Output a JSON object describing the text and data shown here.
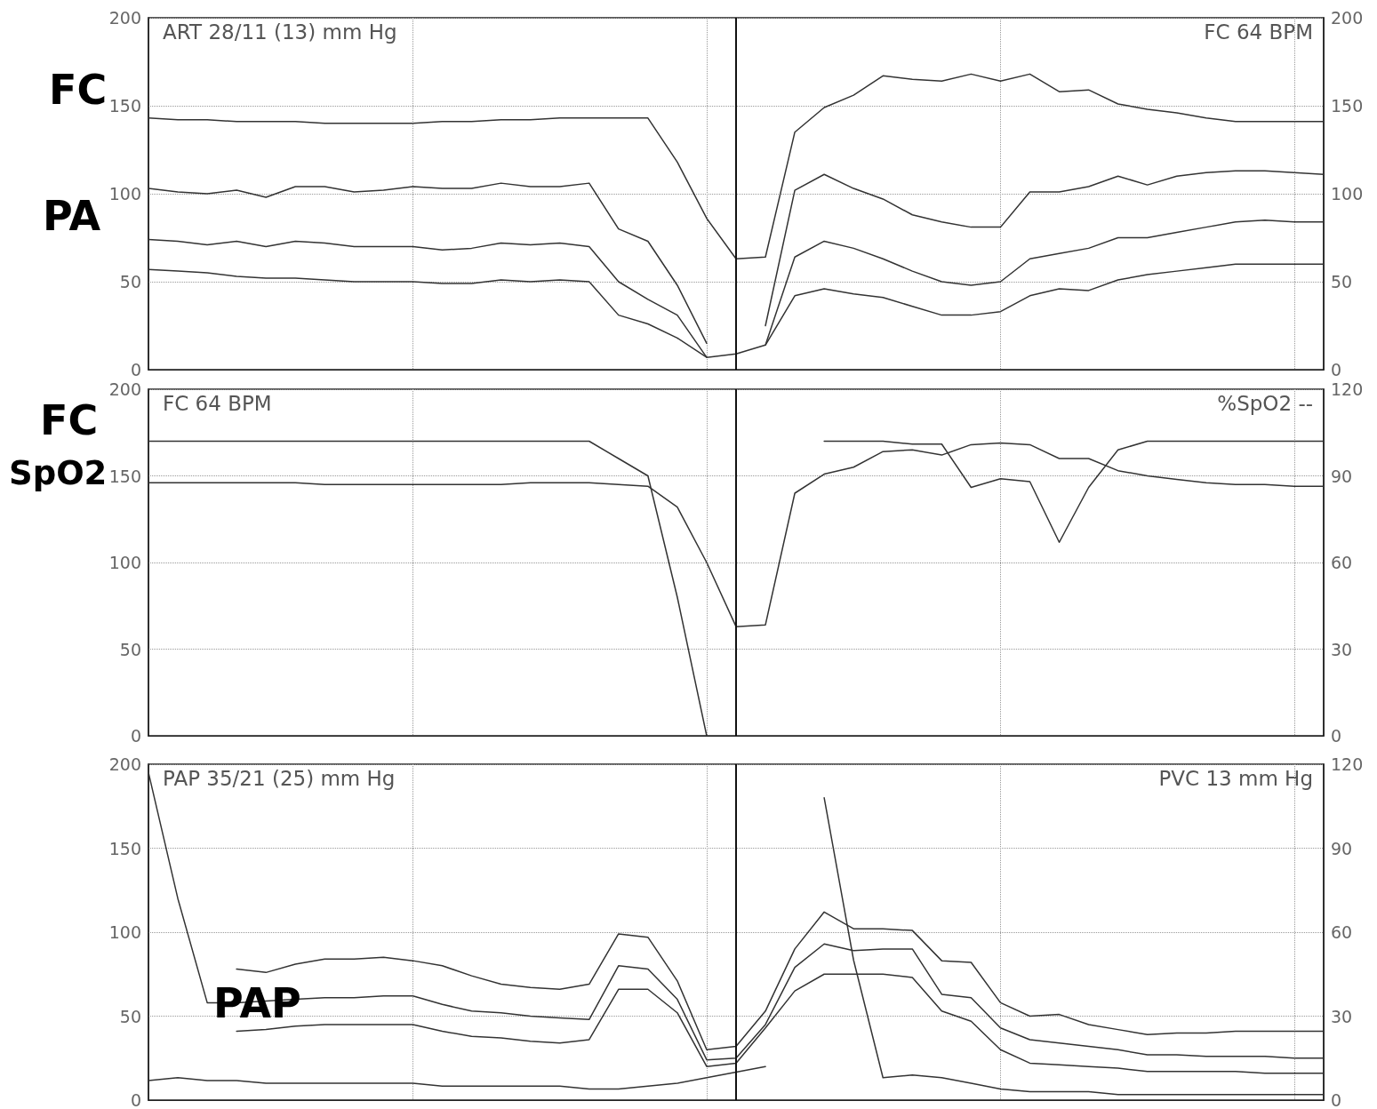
{
  "chart_data": [
    {
      "type": "line",
      "ylabel": "ART 28/11 (13) mm Hg",
      "y2label": "FC 64 BPM",
      "annotations": [
        "FC",
        "PA"
      ],
      "categories": [
        null,
        null,
        null,
        null,
        null,
        null,
        null,
        null,
        null,
        null,
        null,
        null,
        null,
        null,
        null,
        null,
        null,
        null,
        null,
        null,
        null,
        null,
        null,
        null,
        null,
        null,
        null,
        null,
        null,
        null,
        null,
        null,
        null,
        null,
        null,
        null,
        null,
        null,
        null,
        null,
        null
      ],
      "ylim": [
        0,
        200
      ],
      "yticks": [
        0,
        50,
        100,
        150,
        200
      ],
      "y2lim": [
        0,
        200
      ],
      "y2ticks": [
        0,
        50,
        100,
        150,
        200
      ],
      "tick_labels": "y",
      "grid": true,
      "line_style": "solid",
      "series": [
        {
          "color": "#333333",
          "axis": "y2",
          "values": [
            143,
            142,
            142,
            141,
            141,
            141,
            140,
            140,
            140,
            140,
            141,
            141,
            142,
            142,
            143,
            143,
            143,
            143,
            118,
            86,
            63,
            64,
            135,
            149,
            156,
            167,
            165,
            164,
            168,
            164,
            168,
            158,
            159,
            151,
            148,
            146,
            143,
            141,
            141,
            141,
            141
          ]
        },
        {
          "color": "#333333",
          "values": [
            103,
            101,
            100,
            102,
            98,
            104,
            104,
            101,
            102,
            104,
            103,
            103,
            106,
            104,
            104,
            106,
            80,
            73,
            48,
            15,
            null,
            25,
            102,
            111,
            103,
            97,
            88,
            84,
            81,
            81,
            101,
            101,
            104,
            110,
            105,
            110,
            112,
            113,
            113,
            112,
            111
          ]
        },
        {
          "color": "#333333",
          "values": [
            74,
            73,
            71,
            73,
            70,
            73,
            72,
            70,
            70,
            70,
            68,
            69,
            72,
            71,
            72,
            70,
            50,
            40,
            31,
            7,
            null,
            14,
            64,
            73,
            69,
            63,
            56,
            50,
            48,
            50,
            63,
            66,
            69,
            75,
            75,
            78,
            81,
            84,
            85,
            84,
            84
          ]
        },
        {
          "color": "#333333",
          "values": [
            57,
            56,
            55,
            53,
            52,
            52,
            51,
            50,
            50,
            50,
            49,
            49,
            51,
            50,
            51,
            50,
            31,
            26,
            18,
            7,
            9,
            14,
            42,
            46,
            43,
            41,
            36,
            31,
            31,
            33,
            42,
            46,
            45,
            51,
            54,
            56,
            58,
            60,
            60,
            60,
            60
          ]
        }
      ]
    },
    {
      "type": "line",
      "ylabel": "FC 64 BPM",
      "y2label": "%SpO2 --",
      "annotations": [
        "FC",
        "SpO2"
      ],
      "categories": [
        null,
        null,
        null,
        null,
        null,
        null,
        null,
        null,
        null,
        null,
        null,
        null,
        null,
        null,
        null,
        null,
        null,
        null,
        null,
        null,
        null,
        null,
        null,
        null,
        null,
        null,
        null,
        null,
        null,
        null,
        null,
        null,
        null,
        null,
        null,
        null,
        null,
        null,
        null,
        null,
        null
      ],
      "ylim": [
        0,
        200
      ],
      "yticks": [
        0,
        50,
        100,
        150,
        200
      ],
      "y2lim": [
        0,
        120
      ],
      "y2ticks": [
        0,
        30,
        60,
        90,
        120
      ],
      "tick_labels": "y",
      "grid": true,
      "line_style": "solid",
      "series": [
        {
          "color": "#333333",
          "values": [
            146,
            146,
            146,
            146,
            146,
            146,
            145,
            145,
            145,
            145,
            145,
            145,
            145,
            146,
            146,
            146,
            145,
            144,
            132,
            100,
            63,
            64,
            140,
            151,
            155,
            164,
            165,
            162,
            168,
            169,
            168,
            160,
            160,
            153,
            150,
            148,
            146,
            145,
            145,
            144,
            144
          ]
        },
        {
          "color": "#333333",
          "axis": "y2",
          "values": [
            102,
            102,
            102,
            102,
            102,
            102,
            102,
            102,
            102,
            102,
            102,
            102,
            102,
            102,
            102,
            102,
            96,
            90,
            48,
            0,
            null,
            null,
            null,
            102,
            102,
            102,
            101,
            101,
            86,
            89,
            88,
            67,
            86,
            99,
            102,
            102,
            102,
            102,
            102,
            102,
            102
          ]
        }
      ]
    },
    {
      "type": "line",
      "ylabel": "PAP 35/21 (25) mm Hg",
      "y2label": "PVC 13 mm Hg",
      "annotations": [
        "PAP"
      ],
      "categories": [
        null,
        null,
        null,
        null,
        null,
        null,
        null,
        null,
        null,
        null,
        null,
        null,
        null,
        null,
        null,
        null,
        null,
        null,
        null,
        null,
        null,
        null,
        null,
        null,
        null,
        null,
        null,
        null,
        null,
        null,
        null,
        null,
        null,
        null,
        null,
        null,
        null,
        null,
        null,
        null,
        null
      ],
      "ylim": [
        0,
        200
      ],
      "yticks": [
        0,
        50,
        100,
        150,
        200
      ],
      "y2lim": [
        0,
        120
      ],
      "y2ticks": [
        0,
        30,
        60,
        90,
        120
      ],
      "tick_labels": "y",
      "grid": true,
      "line_style": "solid",
      "series": [
        {
          "color": "#333333",
          "values": [
            null,
            null,
            null,
            78,
            76,
            81,
            84,
            84,
            85,
            83,
            80,
            74,
            69,
            67,
            66,
            69,
            99,
            97,
            71,
            30,
            32,
            53,
            90,
            112,
            102,
            102,
            101,
            83,
            82,
            58,
            50,
            51,
            45,
            42,
            39,
            40,
            40,
            41,
            41,
            41,
            41
          ]
        },
        {
          "color": "#333333",
          "values": [
            195,
            120,
            58,
            58,
            59,
            60,
            61,
            61,
            62,
            62,
            57,
            53,
            52,
            50,
            49,
            48,
            80,
            78,
            60,
            24,
            25,
            45,
            79,
            93,
            89,
            90,
            90,
            63,
            61,
            43,
            36,
            34,
            32,
            30,
            27,
            27,
            26,
            26,
            26,
            25,
            25
          ]
        },
        {
          "color": "#333333",
          "values": [
            null,
            null,
            null,
            41,
            42,
            44,
            45,
            45,
            45,
            45,
            41,
            38,
            37,
            35,
            34,
            36,
            66,
            66,
            52,
            20,
            22,
            43,
            65,
            75,
            75,
            75,
            73,
            53,
            47,
            30,
            22,
            21,
            20,
            19,
            17,
            17,
            17,
            17,
            16,
            16,
            16
          ]
        },
        {
          "color": "#333333",
          "axis": "y2",
          "values": [
            7,
            8,
            7,
            7,
            6,
            6,
            6,
            6,
            6,
            6,
            5,
            5,
            5,
            5,
            5,
            4,
            4,
            5,
            6,
            8,
            10,
            12,
            null,
            108,
            50,
            8,
            9,
            8,
            6,
            4,
            3,
            3,
            3,
            2,
            2,
            2,
            2,
            2,
            2,
            2,
            2
          ]
        }
      ]
    }
  ]
}
